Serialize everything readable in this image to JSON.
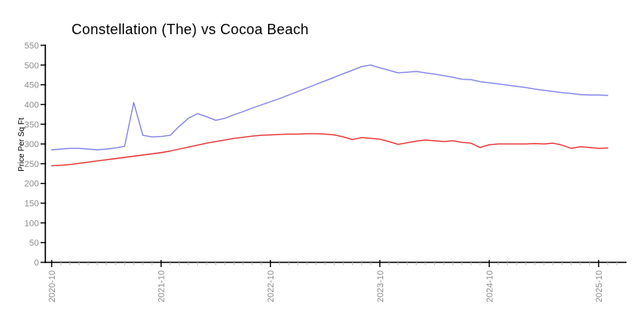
{
  "chart_data": {
    "type": "line",
    "title": "Constellation (The) vs Cocoa Beach",
    "xlabel": "",
    "ylabel": "Price Per Sq Ft",
    "ylim": [
      0,
      550
    ],
    "y_ticks": [
      0,
      50,
      100,
      150,
      200,
      250,
      300,
      350,
      400,
      450,
      500,
      550
    ],
    "x_interval": "monthly",
    "x_start": "2020-10",
    "x_end": "2025-11",
    "x_major_ticks": [
      {
        "index": 0,
        "label": "2020-10"
      },
      {
        "index": 12,
        "label": "2021-10"
      },
      {
        "index": 24,
        "label": "2022-10"
      },
      {
        "index": 36,
        "label": "2023-10"
      },
      {
        "index": 48,
        "label": "2024-10"
      },
      {
        "index": 60,
        "label": "2025-10"
      }
    ],
    "minor_ticks_monthly": 63,
    "grid": false,
    "legend": "none",
    "colors": {
      "background": "#ffffff",
      "axis": "#000000",
      "tick_label": "#8c8c8c",
      "title": "#2e2e2e",
      "minor_tick": "#c0c0c0"
    },
    "series": [
      {
        "name": "Constellation (The)",
        "color": "#8484e8",
        "values": [
          285,
          287,
          289,
          289,
          287,
          285,
          287,
          290,
          294,
          405,
          322,
          318,
          319,
          322,
          345,
          365,
          377,
          369,
          360,
          365,
          374,
          382,
          391,
          399,
          407,
          415,
          424,
          433,
          442,
          451,
          460,
          469,
          478,
          487,
          496,
          500,
          493,
          487,
          480,
          482,
          484,
          480,
          477,
          473,
          469,
          464,
          463,
          458,
          455,
          452,
          449,
          446,
          443,
          439,
          436,
          433,
          430,
          428,
          425,
          424,
          424,
          423
        ]
      },
      {
        "name": "Cocoa Beach",
        "color": "#e83232",
        "values": [
          245,
          246,
          248,
          251,
          254,
          257,
          260,
          263,
          266,
          269,
          272,
          275,
          278,
          282,
          287,
          292,
          297,
          302,
          306,
          310,
          314,
          317,
          320,
          322,
          323,
          324,
          325,
          325,
          326,
          326,
          325,
          323,
          318,
          311,
          316,
          314,
          312,
          306,
          299,
          303,
          307,
          310,
          308,
          306,
          308,
          304,
          302,
          291,
          298,
          300,
          300,
          300,
          300,
          301,
          300,
          302,
          297,
          289,
          293,
          291,
          289,
          290
        ]
      }
    ]
  }
}
